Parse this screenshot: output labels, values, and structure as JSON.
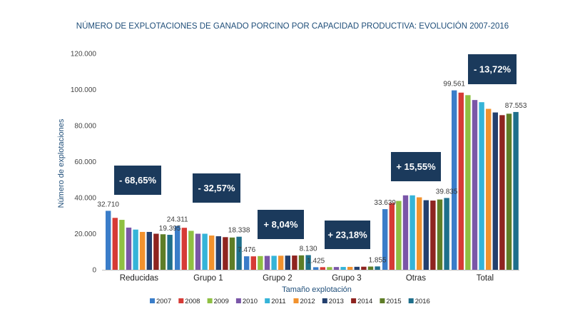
{
  "chart_data": {
    "type": "bar",
    "title": "NÚMERO DE EXPLOTACIONES DE GANADO PORCINO POR CAPACIDAD PRODUCTIVA: EVOLUCIÓN 2007-2016",
    "xlabel": "Tamaño explotación",
    "ylabel": "Número de explotaciones",
    "ylim": [
      0,
      120000
    ],
    "yticks": [
      "0",
      "20.000",
      "40.000",
      "60.000",
      "80.000",
      "100.000",
      "120.000"
    ],
    "ytick_values": [
      0,
      20000,
      40000,
      60000,
      80000,
      100000,
      120000
    ],
    "grid": false,
    "legend_position": "bottom",
    "categories": [
      "Reducidas",
      "Grupo 1",
      "Grupo 2",
      "Grupo 3",
      "Otras",
      "Total"
    ],
    "series": [
      {
        "name": "2007",
        "color": "#3a7dc9",
        "values": [
          32710,
          24311,
          7476,
          1425,
          33639,
          99561
        ]
      },
      {
        "name": "2008",
        "color": "#d63b36",
        "values": [
          28800,
          23300,
          7450,
          1450,
          37000,
          98300
        ]
      },
      {
        "name": "2009",
        "color": "#8fc043",
        "values": [
          27700,
          21600,
          7600,
          1480,
          38200,
          96900
        ]
      },
      {
        "name": "2010",
        "color": "#7a56a8",
        "values": [
          23400,
          20000,
          7700,
          1530,
          41300,
          94200
        ]
      },
      {
        "name": "2011",
        "color": "#35b4d8",
        "values": [
          22300,
          20000,
          7750,
          1560,
          41300,
          93000
        ]
      },
      {
        "name": "2012",
        "color": "#f2922e",
        "values": [
          21000,
          19000,
          7800,
          1600,
          40200,
          89300
        ]
      },
      {
        "name": "2013",
        "color": "#23406e",
        "values": [
          21000,
          18600,
          7850,
          1650,
          38600,
          87300
        ]
      },
      {
        "name": "2014",
        "color": "#8e2420",
        "values": [
          20000,
          18100,
          7900,
          1700,
          38400,
          85800
        ]
      },
      {
        "name": "2015",
        "color": "#5e7d27",
        "values": [
          19700,
          17900,
          8000,
          1780,
          39000,
          86600
        ]
      },
      {
        "name": "2016",
        "color": "#1f6f8b",
        "values": [
          19395,
          18338,
          8130,
          1855,
          39835,
          87553
        ]
      }
    ],
    "data_labels": [
      {
        "category": 0,
        "series": 0,
        "text": "32.710"
      },
      {
        "category": 0,
        "series": 9,
        "text": "19.395"
      },
      {
        "category": 1,
        "series": 0,
        "text": "24.311"
      },
      {
        "category": 1,
        "series": 9,
        "text": "18.338"
      },
      {
        "category": 2,
        "series": 0,
        "text": "7.476"
      },
      {
        "category": 2,
        "series": 9,
        "text": "8.130"
      },
      {
        "category": 3,
        "series": 0,
        "text": "1.425"
      },
      {
        "category": 3,
        "series": 9,
        "text": "1.855"
      },
      {
        "category": 4,
        "series": 0,
        "text": "33.639"
      },
      {
        "category": 4,
        "series": 9,
        "text": "39.835"
      },
      {
        "category": 5,
        "series": 0,
        "text": "99.561"
      },
      {
        "category": 5,
        "series": 9,
        "text": "87.553"
      }
    ],
    "annotations": [
      {
        "category": 0,
        "text": "- 68,65%"
      },
      {
        "category": 1,
        "text": "- 32,57%"
      },
      {
        "category": 2,
        "text": "+ 8,04%"
      },
      {
        "category": 3,
        "text": "+ 23,18%"
      },
      {
        "category": 4,
        "text": "+ 15,55%"
      },
      {
        "category": 5,
        "text": "- 13,72%"
      }
    ],
    "callout_color": "#1b3a5c"
  }
}
